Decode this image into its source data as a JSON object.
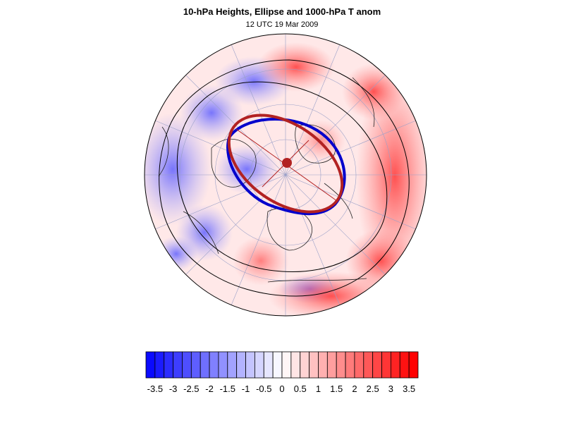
{
  "figure": {
    "title": "10-hPa Heights, Ellipse and 1000-hPa T anom",
    "subtitle": "12 UTC 19 Mar 2009"
  },
  "colorbar": {
    "levels": [
      -3.75,
      -3.5,
      -3.25,
      -3,
      -2.75,
      -2.5,
      -2.25,
      -2,
      -1.75,
      -1.5,
      -1.25,
      -1,
      -0.75,
      -0.5,
      -0.25,
      0,
      0.25,
      0.5,
      0.75,
      1,
      1.25,
      1.5,
      1.75,
      2,
      2.25,
      2.5,
      2.75,
      3,
      3.25,
      3.5,
      3.75
    ],
    "tick_labels": [
      "-3.5",
      "-3",
      "-2.5",
      "-2",
      "-1.5",
      "-1",
      "-0.5",
      "0",
      "0.5",
      "1",
      "1.5",
      "2",
      "2.5",
      "3",
      "3.5"
    ],
    "tick_values": [
      -3.5,
      -3,
      -2.5,
      -2,
      -1.5,
      -1,
      -0.5,
      0,
      0.5,
      1,
      1.5,
      2,
      2.5,
      3,
      3.5
    ],
    "colors": {
      "cold": "#0a0aff",
      "neutral": "#ffffff",
      "warm": "#ff0000"
    }
  },
  "map": {
    "projection": "polar stereographic (north pole)",
    "ellipse_colors": {
      "ellipse": "#b22222",
      "vortex_edge": "#0000cc"
    }
  }
}
